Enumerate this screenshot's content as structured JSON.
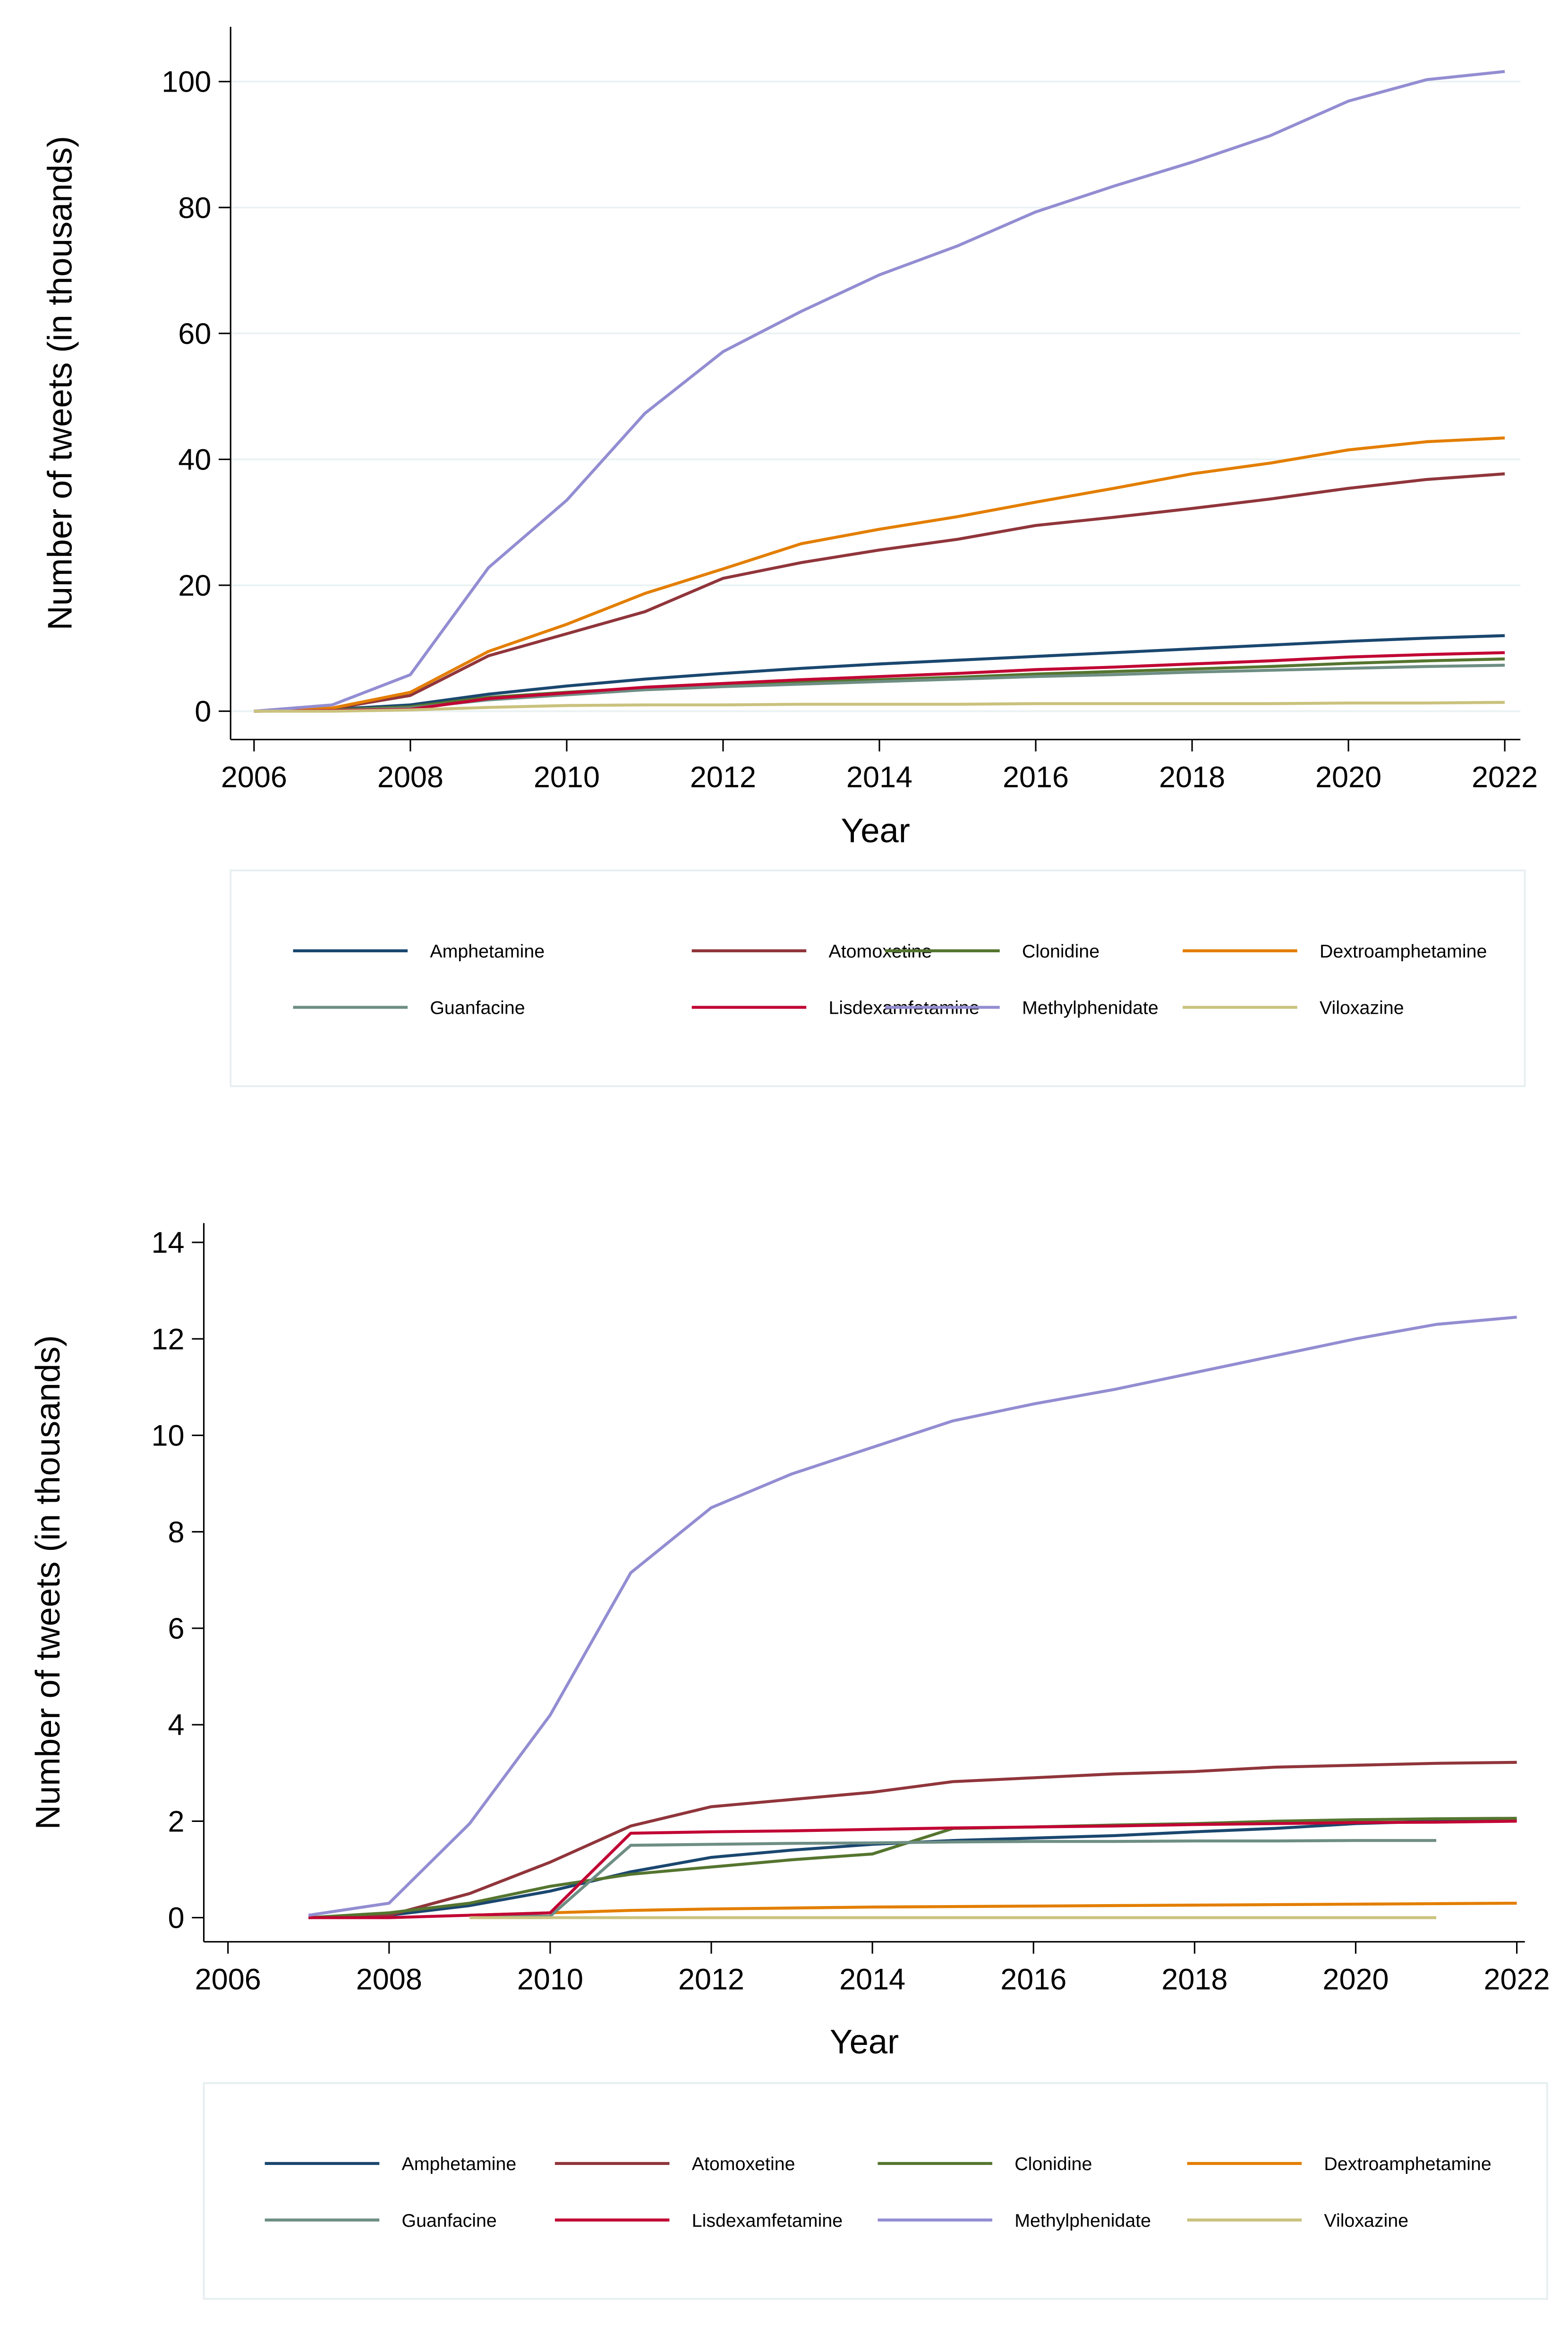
{
  "chart_data": [
    {
      "type": "line",
      "x_label": "Year",
      "y_label": "Number of tweets (in thousands)",
      "x": [
        2006,
        2007,
        2008,
        2009,
        2010,
        2011,
        2012,
        2013,
        2014,
        2015,
        2016,
        2017,
        2018,
        2019,
        2020,
        2021,
        2022
      ],
      "xlim": [
        2005.7,
        2022.2
      ],
      "xticks": [
        2006,
        2008,
        2010,
        2012,
        2014,
        2016,
        2018,
        2020,
        2022
      ],
      "ylim": [
        -4.5,
        108.7
      ],
      "yticks": [
        0,
        20,
        40,
        60,
        80,
        100
      ],
      "grid": true,
      "legend": "bottom",
      "series": [
        {
          "name": "Amphetamine",
          "color": "#1a476f",
          "values": [
            0,
            0.3,
            1,
            2.7,
            4,
            5.1,
            6,
            6.8,
            7.5,
            8.1,
            8.7,
            9.3,
            9.9,
            10.5,
            11.1,
            11.6,
            12
          ]
        },
        {
          "name": "Atomoxetine",
          "color": "#90353b",
          "values": [
            0,
            0.4,
            2.5,
            8.8,
            12.3,
            15.8,
            21.1,
            23.6,
            25.6,
            27.3,
            29.5,
            30.8,
            32.2,
            33.7,
            35.4,
            36.8,
            37.7
          ]
        },
        {
          "name": "Clonidine",
          "color": "#55752f",
          "values": [
            0,
            0.2,
            0.7,
            2.2,
            3,
            3.7,
            4.2,
            4.6,
            5,
            5.4,
            5.9,
            6.3,
            6.7,
            7.1,
            7.6,
            8,
            8.3
          ]
        },
        {
          "name": "Dextroamphetamine",
          "color": "#e37e00",
          "values": [
            0,
            0.5,
            3,
            9.5,
            13.8,
            18.7,
            22.6,
            26.6,
            28.9,
            30.9,
            33.2,
            35.4,
            37.7,
            39.4,
            41.5,
            42.8,
            43.4
          ]
        },
        {
          "name": "Guanfacine",
          "color": "#6e8e84",
          "values": [
            0,
            0.1,
            0.5,
            1.8,
            2.6,
            3.4,
            3.9,
            4.3,
            4.7,
            5.1,
            5.5,
            5.8,
            6.2,
            6.5,
            6.8,
            7.1,
            7.3
          ]
        },
        {
          "name": "Lisdexamfetamine",
          "color": "#c10534",
          "values": [
            0,
            0.1,
            0.3,
            2,
            2.9,
            3.8,
            4.4,
            5,
            5.5,
            6,
            6.6,
            7,
            7.5,
            8,
            8.6,
            9,
            9.3
          ]
        },
        {
          "name": "Methylphenidate",
          "color": "#938dd2",
          "values": [
            0,
            1,
            5.8,
            22.8,
            33.5,
            47.3,
            57.1,
            63.5,
            69.3,
            73.9,
            79.3,
            83.4,
            87.2,
            91.4,
            96.9,
            100.3,
            101.6
          ]
        },
        {
          "name": "Viloxazine",
          "color": "#cac27e",
          "values": [
            0,
            0,
            0.2,
            0.6,
            0.9,
            1,
            1,
            1.1,
            1.1,
            1.1,
            1.2,
            1.2,
            1.2,
            1.2,
            1.3,
            1.3,
            1.4
          ]
        }
      ]
    },
    {
      "type": "line",
      "x_label": "Year",
      "y_label": "Number of tweets (in thousands)",
      "x": [
        2007,
        2008,
        2009,
        2010,
        2011,
        2012,
        2013,
        2014,
        2015,
        2016,
        2017,
        2018,
        2019,
        2020,
        2021,
        2022
      ],
      "xlim": [
        2005.7,
        2022.1
      ],
      "xticks": [
        2006,
        2008,
        2010,
        2012,
        2014,
        2016,
        2018,
        2020,
        2022
      ],
      "ylim": [
        -0.5,
        14.4
      ],
      "yticks": [
        0,
        2,
        4,
        6,
        8,
        10,
        12,
        14
      ],
      "grid": false,
      "legend": "bottom",
      "series": [
        {
          "name": "Amphetamine",
          "color": "#1a476f",
          "values": [
            0,
            0.05,
            0.25,
            0.55,
            0.95,
            1.25,
            1.4,
            1.52,
            1.6,
            1.65,
            1.7,
            1.78,
            1.85,
            1.95,
            2,
            2.03
          ]
        },
        {
          "name": "Atomoxetine",
          "color": "#90353b",
          "values": [
            0,
            0.05,
            0.5,
            1.15,
            1.9,
            2.3,
            2.45,
            2.6,
            2.82,
            2.9,
            2.98,
            3.03,
            3.12,
            3.16,
            3.2,
            3.22
          ]
        },
        {
          "name": "Clonidine",
          "color": "#55752f",
          "values": [
            0,
            0.1,
            0.3,
            0.65,
            0.9,
            1.05,
            1.2,
            1.32,
            1.85,
            1.88,
            1.92,
            1.95,
            2,
            2.03,
            2.05,
            2.06
          ]
        },
        {
          "name": "Dextroamphetamine",
          "color": "#e37e00",
          "values": [
            null,
            null,
            0.05,
            0.1,
            0.15,
            0.18,
            0.2,
            0.22,
            0.23,
            0.24,
            0.25,
            0.26,
            0.27,
            0.28,
            0.29,
            0.3
          ]
        },
        {
          "name": "Guanfacine",
          "color": "#6e8e84",
          "values": [
            null,
            null,
            0.02,
            0.03,
            1.5,
            1.52,
            1.54,
            1.55,
            1.57,
            1.58,
            1.58,
            1.59,
            1.59,
            1.6,
            1.6,
            null
          ]
        },
        {
          "name": "Lisdexamfetamine",
          "color": "#c10534",
          "values": [
            0,
            0,
            0.05,
            0.1,
            1.75,
            1.78,
            1.8,
            1.83,
            1.86,
            1.88,
            1.9,
            1.93,
            1.95,
            1.97,
            1.98,
            2
          ]
        },
        {
          "name": "Methylphenidate",
          "color": "#938dd2",
          "values": [
            0.05,
            0.3,
            1.95,
            4.2,
            7.15,
            8.5,
            9.2,
            9.75,
            10.3,
            10.65,
            10.95,
            11.3,
            11.65,
            12,
            12.3,
            12.45
          ]
        },
        {
          "name": "Viloxazine",
          "color": "#cac27e",
          "values": [
            null,
            null,
            0,
            0,
            0,
            0,
            0,
            0,
            0,
            0,
            0,
            0,
            0,
            0,
            0,
            null
          ]
        }
      ]
    }
  ]
}
